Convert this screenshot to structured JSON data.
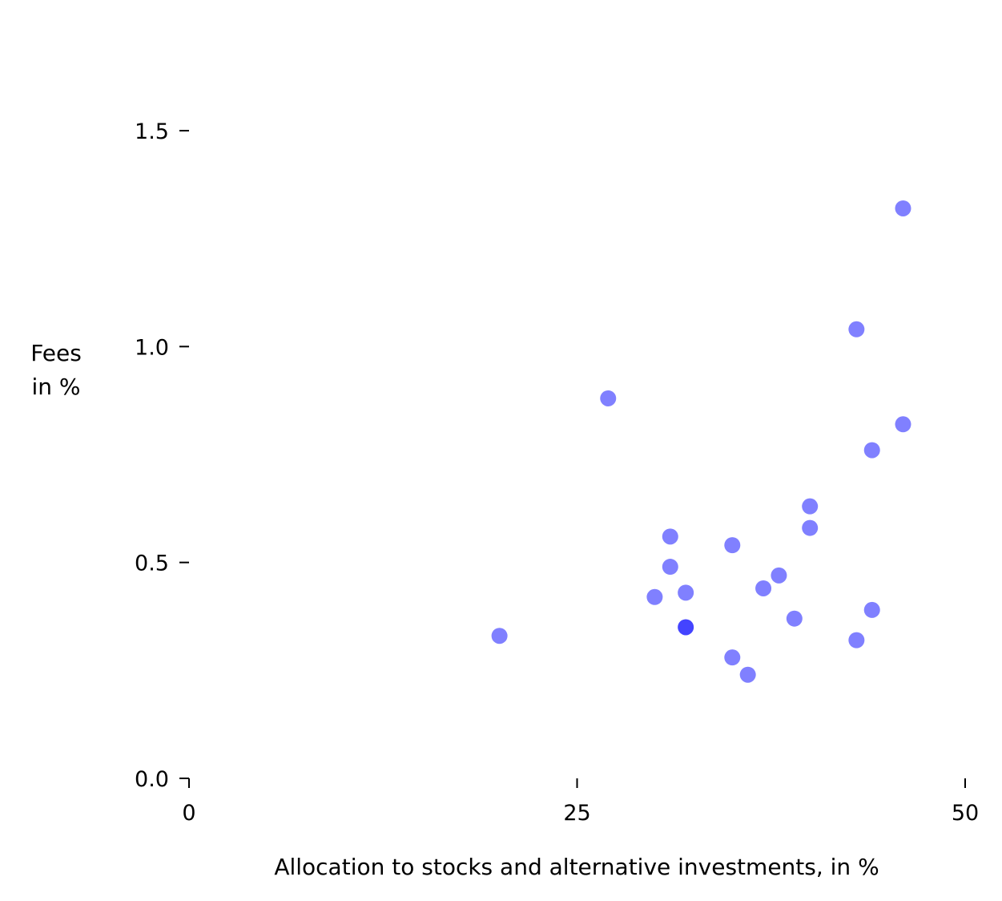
{
  "chart_data": {
    "type": "scatter",
    "title": "",
    "xlabel": "Allocation to stocks and alternative investments, in %",
    "ylabel": [
      "Fees",
      "in %"
    ],
    "xlim": [
      0,
      50
    ],
    "ylim": [
      0,
      1.5
    ],
    "xticks": [
      {
        "value": 0,
        "label": "0"
      },
      {
        "value": 25,
        "label": "25"
      },
      {
        "value": 50,
        "label": "50"
      }
    ],
    "yticks": [
      {
        "value": 0.0,
        "label": "0.0"
      },
      {
        "value": 0.5,
        "label": "0.5"
      },
      {
        "value": 1.0,
        "label": "1.0"
      },
      {
        "value": 1.5,
        "label": "1.5"
      }
    ],
    "grid": false,
    "point_color": "#8080ff",
    "highlight_color": "#4444ff",
    "points": [
      {
        "x": 20,
        "y": 0.33
      },
      {
        "x": 27,
        "y": 0.88
      },
      {
        "x": 30,
        "y": 0.42
      },
      {
        "x": 31,
        "y": 0.56
      },
      {
        "x": 31,
        "y": 0.49
      },
      {
        "x": 32,
        "y": 0.43
      },
      {
        "x": 32,
        "y": 0.35,
        "highlight": true
      },
      {
        "x": 35,
        "y": 0.54
      },
      {
        "x": 35,
        "y": 0.28
      },
      {
        "x": 36,
        "y": 0.24
      },
      {
        "x": 37,
        "y": 0.44
      },
      {
        "x": 38,
        "y": 0.47
      },
      {
        "x": 39,
        "y": 0.37
      },
      {
        "x": 40,
        "y": 0.63
      },
      {
        "x": 40,
        "y": 0.58
      },
      {
        "x": 43,
        "y": 1.04
      },
      {
        "x": 43,
        "y": 0.32
      },
      {
        "x": 44,
        "y": 0.76
      },
      {
        "x": 44,
        "y": 0.39
      },
      {
        "x": 46,
        "y": 1.32
      },
      {
        "x": 46,
        "y": 0.82
      }
    ]
  }
}
